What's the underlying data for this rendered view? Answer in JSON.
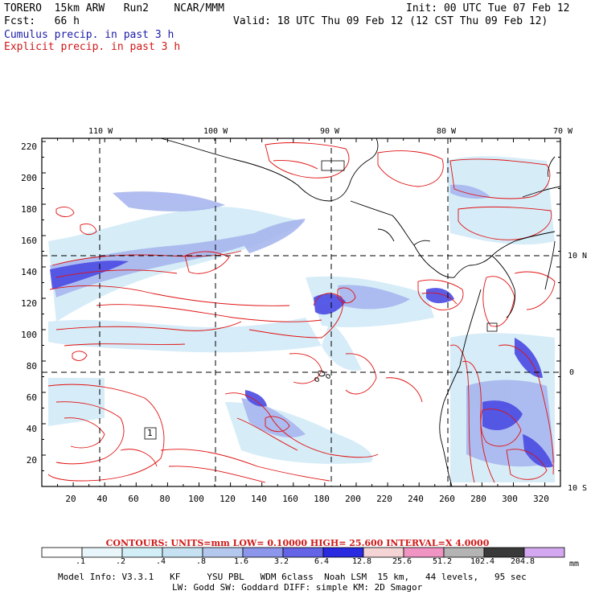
{
  "header": {
    "model": "TORERO  15km ARW   Run2    NCAR/MMM",
    "init": "Init: 00 UTC Tue 07 Feb 12",
    "fcst": "Fcst:   66 h",
    "valid": "Valid: 18 UTC Thu 09 Feb 12 (12 CST Thu 09 Feb 12)",
    "cumulus_label": "Cumulus precip. in past 3 h",
    "explicit_label": "Explicit precip. in past 3 h"
  },
  "map": {
    "lon_labels": [
      "110 W",
      "100 W",
      "90 W",
      "80 W",
      "70 W"
    ],
    "lat_labels": [
      "10 N",
      "0",
      "10 S"
    ],
    "y_ticks": [
      "220",
      "200",
      "180",
      "160",
      "140",
      "120",
      "100",
      "80",
      "60",
      "40",
      "20"
    ],
    "x_ticks": [
      "20",
      "40",
      "60",
      "80",
      "100",
      "120",
      "140",
      "160",
      "180",
      "200",
      "220",
      "240",
      "260",
      "280",
      "300",
      "320"
    ],
    "box_label": "1",
    "colors": {
      "contour": "#e01010",
      "coast": "#000000",
      "grid": "#000000"
    }
  },
  "contours_info": "CONTOURS:  UNITS=mm  LOW= 0.10000     HIGH=  25.600     INTERVAL=X  4.0000",
  "colorbar": {
    "unit": "mm",
    "labels": [
      ".1",
      ".2",
      ".4",
      ".8",
      "1.6",
      "3.2",
      "6.4",
      "12.8",
      "25.6",
      "51.2",
      "102.4",
      "204.8"
    ],
    "colors": [
      "#ffffff",
      "#e8f6fb",
      "#d2eef6",
      "#c6e2f2",
      "#b4c8ee",
      "#8c96ea",
      "#6464e6",
      "#2a2ae0",
      "#f4d4d4",
      "#f094c4",
      "#b4b4b4",
      "#3a3a3a",
      "#d4a8f0"
    ]
  },
  "footer": {
    "line1": "Model Info: V3.3.1   KF     YSU PBL   WDM 6class  Noah LSM  15 km,   44 levels,   95 sec",
    "line2": "LW: Godd SW: Goddard DIFF: simple KM: 2D Smagor"
  }
}
